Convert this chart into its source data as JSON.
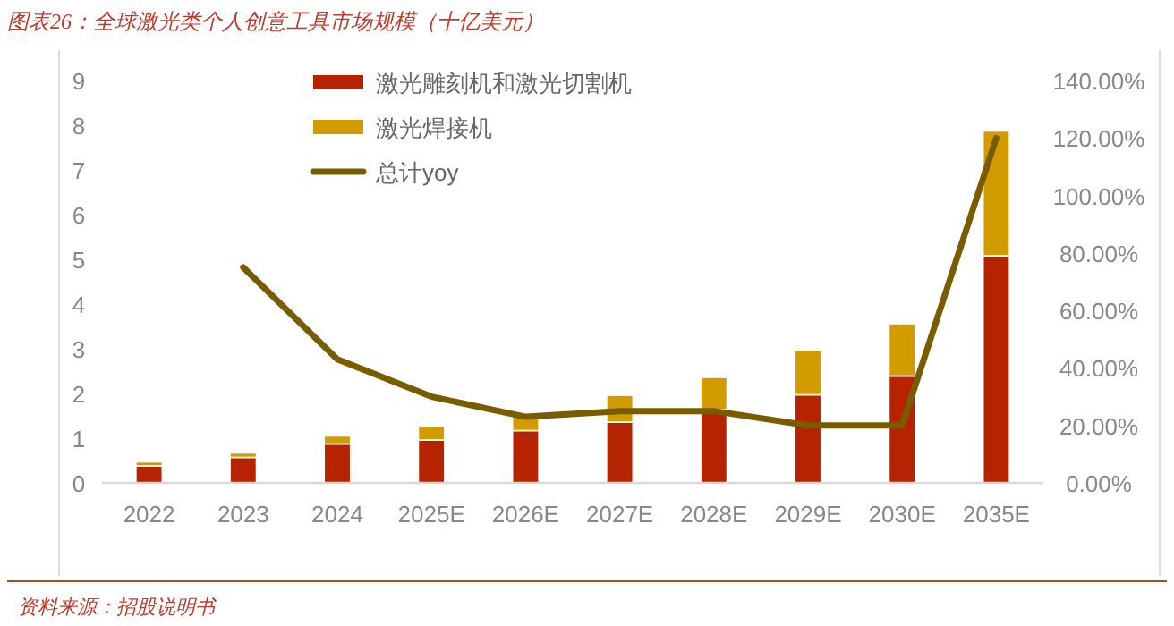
{
  "chart_data": {
    "type": "bar",
    "stacked": true,
    "title": "图表26：全球激光类个人创意工具市场规模（十亿美元）",
    "categories": [
      "2022",
      "2023",
      "2024",
      "2025E",
      "2026E",
      "2027E",
      "2028E",
      "2029E",
      "2030E",
      "2035E"
    ],
    "series": [
      {
        "name": "激光雕刻机和激光切割机",
        "color": "#b52300",
        "values": [
          0.38,
          0.57,
          0.87,
          0.96,
          1.17,
          1.36,
          1.64,
          1.97,
          2.39,
          5.08
        ]
      },
      {
        "name": "激光焊接机",
        "color": "#d29c00",
        "values": [
          0.09,
          0.1,
          0.18,
          0.31,
          0.33,
          0.6,
          0.72,
          1.0,
          1.17,
          2.79
        ]
      },
      {
        "name": "总计yoy",
        "color": "#7a5c00",
        "type": "line",
        "axis": "y2",
        "values": [
          null,
          75,
          43,
          30,
          23,
          25,
          25,
          20,
          20,
          120
        ]
      }
    ],
    "ylim": [
      0,
      9
    ],
    "yticks": [
      0,
      1,
      2,
      3,
      4,
      5,
      6,
      7,
      8,
      9
    ],
    "y2lim": [
      0,
      140
    ],
    "y2ticks": [
      {
        "value": 0,
        "label": "0.00%"
      },
      {
        "value": 20,
        "label": "20.00%"
      },
      {
        "value": 40,
        "label": "40.00%"
      },
      {
        "value": 60,
        "label": "60.00%"
      },
      {
        "value": 80,
        "label": "80.00%"
      },
      {
        "value": 100,
        "label": "100.00%"
      },
      {
        "value": 120,
        "label": "120.00%"
      },
      {
        "value": 140,
        "label": "140.00%"
      }
    ],
    "grid": false,
    "legend": "top left",
    "line_style": "solid",
    "marker": "none",
    "annotations": [
      "资料来源：招股说明书"
    ]
  }
}
